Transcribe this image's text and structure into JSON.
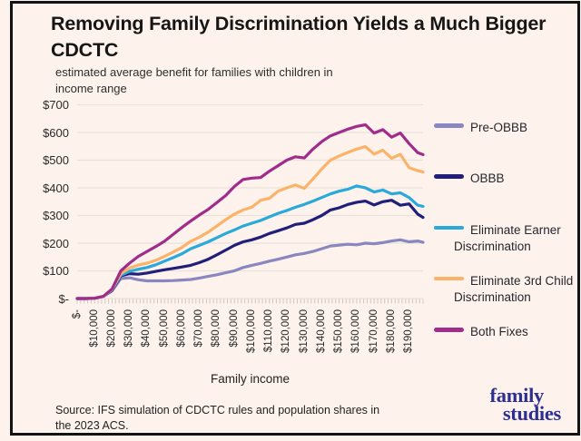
{
  "header": {
    "title": "Removing Family Discrimination Yields a Much Bigger CDCTC",
    "subtitle": "estimated average benefit for families with children in income range"
  },
  "chart_data": {
    "type": "line",
    "title": "Removing Family Discrimination Yields a Much Bigger CDCTC",
    "subtitle": "estimated average benefit for families with children in income range",
    "xlabel": "Family income",
    "ylabel": "",
    "ylim": [
      0,
      700
    ],
    "xlim": [
      0,
      198000
    ],
    "grid": true,
    "legend_position": "right",
    "y_ticks": [
      "$700",
      "$600",
      "$500",
      "$400",
      "$300",
      "$200",
      "$100",
      "$-"
    ],
    "x_tick_labels": [
      "$-",
      "$10,000",
      "$20,000",
      "$30,000",
      "$40,000",
      "$50,000",
      "$60,000",
      "$70,000",
      "$80,000",
      "$90,000",
      "$100,000",
      "$110,000",
      "$120,000",
      "$130,000",
      "$140,000",
      "$150,000",
      "$160,000",
      "$170,000",
      "$180,000",
      "$190,000"
    ],
    "x": [
      0,
      5000,
      10000,
      15000,
      20000,
      25000,
      30000,
      35000,
      40000,
      45000,
      50000,
      55000,
      60000,
      65000,
      70000,
      75000,
      80000,
      85000,
      90000,
      95000,
      100000,
      105000,
      110000,
      115000,
      120000,
      125000,
      130000,
      135000,
      140000,
      145000,
      150000,
      155000,
      160000,
      165000,
      170000,
      175000,
      180000,
      185000,
      190000,
      195000,
      198000
    ],
    "series": [
      {
        "name": "Pre-OBBB",
        "color": "#8a86c0",
        "values": [
          0,
          0,
          1,
          8,
          28,
          72,
          75,
          68,
          64,
          64,
          64,
          65,
          67,
          69,
          74,
          80,
          86,
          93,
          100,
          112,
          120,
          127,
          135,
          142,
          150,
          158,
          163,
          170,
          180,
          190,
          193,
          196,
          194,
          200,
          198,
          202,
          208,
          212,
          205,
          208,
          203
        ]
      },
      {
        "name": "OBBB",
        "color": "#221f7a",
        "values": [
          0,
          0,
          1,
          8,
          30,
          82,
          90,
          88,
          92,
          98,
          104,
          109,
          114,
          120,
          130,
          142,
          158,
          175,
          192,
          205,
          212,
          222,
          235,
          245,
          255,
          268,
          272,
          285,
          300,
          320,
          328,
          340,
          348,
          352,
          338,
          350,
          355,
          337,
          342,
          305,
          293
        ]
      },
      {
        "name": "Eliminate Earner Discrimination",
        "color": "#2aa9db",
        "values": [
          0,
          0,
          1,
          8,
          32,
          85,
          98,
          106,
          112,
          122,
          135,
          148,
          162,
          180,
          192,
          205,
          220,
          235,
          248,
          262,
          272,
          282,
          295,
          308,
          318,
          330,
          340,
          352,
          365,
          378,
          388,
          395,
          407,
          400,
          385,
          392,
          378,
          382,
          365,
          337,
          333
        ]
      },
      {
        "name": "Eliminate 3rd Child Discrimination",
        "color": "#fbb269",
        "values": [
          0,
          0,
          1,
          8,
          33,
          90,
          110,
          121,
          128,
          138,
          152,
          168,
          185,
          207,
          222,
          240,
          262,
          285,
          305,
          320,
          330,
          355,
          362,
          388,
          400,
          410,
          398,
          432,
          468,
          500,
          515,
          528,
          540,
          549,
          522,
          536,
          507,
          521,
          473,
          462,
          457
        ]
      },
      {
        "name": "Both Fixes",
        "color": "#a02c8c",
        "values": [
          0,
          0,
          1,
          8,
          35,
          100,
          128,
          152,
          170,
          188,
          207,
          232,
          257,
          280,
          302,
          322,
          347,
          372,
          405,
          430,
          435,
          437,
          460,
          480,
          500,
          512,
          508,
          540,
          567,
          588,
          600,
          612,
          622,
          628,
          598,
          610,
          583,
          598,
          560,
          527,
          520
        ]
      }
    ]
  },
  "footer": {
    "source": "Source: IFS simulation of CDCTC rules and population shares in the 2023 ACS."
  },
  "logo": {
    "line1": "family",
    "line2": "studies"
  },
  "colors": {
    "background": "#fdf3ec",
    "frame_border": "#131313",
    "gridline": "#e9e1da",
    "logo_navy": "#2d2f92"
  }
}
